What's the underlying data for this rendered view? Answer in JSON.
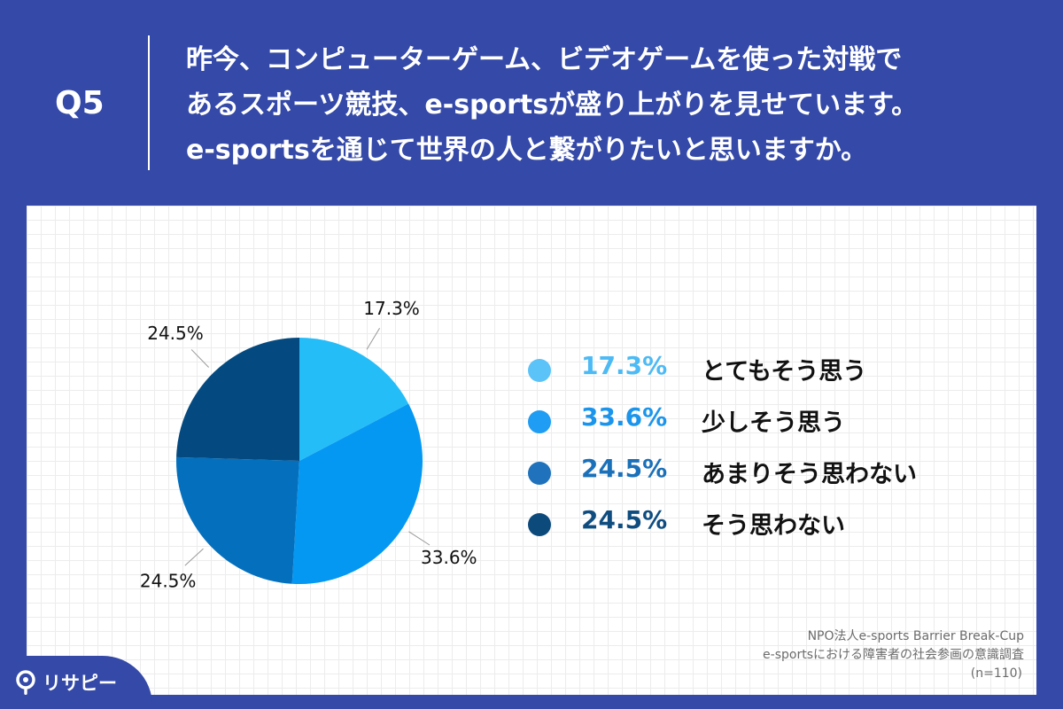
{
  "header": {
    "q_label": "Q5",
    "question_lines": [
      "昨今、コンピューターゲーム、ビデオゲームを使った対戦で",
      "あるスポーツ競技、e-sportsが盛り上がりを見せています。",
      "e-sportsを通じて世界の人と繋がりたいと思いますか。"
    ]
  },
  "chart_data": {
    "type": "pie",
    "categories": [
      "とてもそう思う",
      "少しそう思う",
      "あまりそう思わない",
      "そう思わない"
    ],
    "values": [
      17.3,
      33.6,
      24.5,
      24.5
    ],
    "value_labels": [
      "17.3%",
      "33.6%",
      "24.5%",
      "24.5%"
    ],
    "colors": [
      "#25bdf8",
      "#0598f2",
      "#0470bd",
      "#044a80"
    ],
    "start_angle_deg": 0,
    "direction": "clockwise",
    "legend_placement": "right",
    "legend_dot_colors": [
      "#5bc3f8",
      "#1f9cf3",
      "#1f72bb",
      "#0d4a7c"
    ],
    "legend_pct_colors": [
      "#4cbaf5",
      "#1b95ec",
      "#1a70b9",
      "#0f4d80"
    ]
  },
  "source": {
    "line1": "NPO法人e-sports Barrier Break-Cup",
    "line2": "e-sportsにおける障害者の社会参画の意識調査",
    "line3": "(n=110)"
  },
  "brand": {
    "name": "リサピー",
    "icon": "risapy-logo-icon"
  }
}
